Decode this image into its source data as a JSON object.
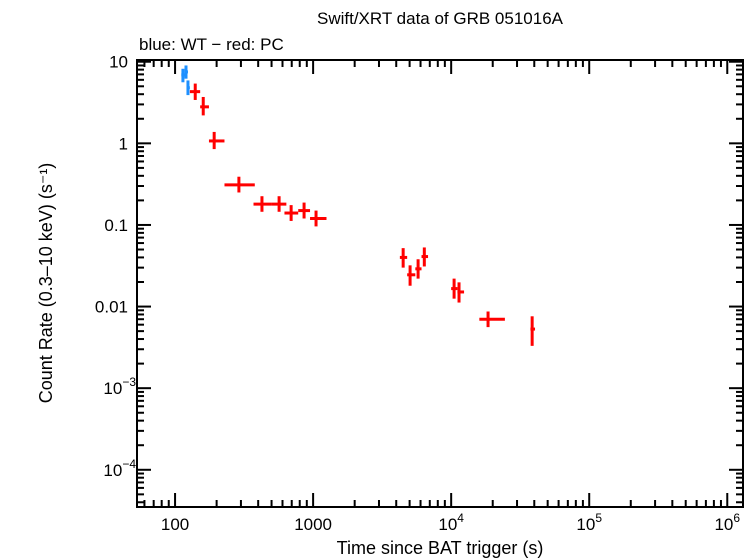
{
  "chart_data": {
    "type": "scatter",
    "title": "Swift/XRT data of GRB 051016A",
    "subtitle": "blue: WT − red: PC",
    "xlabel": "Time since BAT trigger (s)",
    "ylabel": "Count Rate (0.3–10 keV) (s⁻¹)",
    "xscale": "log",
    "yscale": "log",
    "xlim": [
      53,
      1300000
    ],
    "ylim": [
      3.5e-05,
      10.5
    ],
    "grid": false,
    "x_ticks": [
      {
        "v": 100,
        "label": "100"
      },
      {
        "v": 1000,
        "label": "1000"
      },
      {
        "v": 10000,
        "label": "10",
        "exp": "4"
      },
      {
        "v": 100000,
        "label": "10",
        "exp": "5"
      },
      {
        "v": 1000000,
        "label": "10",
        "exp": "6"
      }
    ],
    "y_ticks": [
      {
        "v": 10,
        "label": "10"
      },
      {
        "v": 1,
        "label": "1"
      },
      {
        "v": 0.1,
        "label": "0.1"
      },
      {
        "v": 0.01,
        "label": "0.01"
      },
      {
        "v": 0.001,
        "label": "10",
        "exp": "−3"
      },
      {
        "v": 0.0001,
        "label": "10",
        "exp": "−4"
      }
    ],
    "series": [
      {
        "name": "WT",
        "color": "#1e90ff",
        "points": [
          {
            "t": 114,
            "t_lo": 111,
            "t_hi": 117,
            "r": 6.9,
            "r_lo": 5.6,
            "r_hi": 8.2
          },
          {
            "t": 120,
            "t_lo": 117,
            "t_hi": 124,
            "r": 7.5,
            "r_lo": 6.2,
            "r_hi": 9.0
          },
          {
            "t": 124,
            "t_lo": 121,
            "t_hi": 128,
            "r": 4.8,
            "r_lo": 3.9,
            "r_hi": 5.9
          }
        ]
      },
      {
        "name": "PC",
        "color": "#ff0000",
        "points": [
          {
            "t": 140,
            "t_lo": 128,
            "t_hi": 152,
            "r": 4.3,
            "r_lo": 3.4,
            "r_hi": 5.4
          },
          {
            "t": 160,
            "t_lo": 152,
            "t_hi": 176,
            "r": 2.8,
            "r_lo": 2.2,
            "r_hi": 3.7
          },
          {
            "t": 192,
            "t_lo": 176,
            "t_hi": 228,
            "r": 1.07,
            "r_lo": 0.85,
            "r_hi": 1.38
          },
          {
            "t": 290,
            "t_lo": 228,
            "t_hi": 378,
            "r": 0.31,
            "r_lo": 0.25,
            "r_hi": 0.39
          },
          {
            "t": 426,
            "t_lo": 370,
            "t_hi": 500,
            "r": 0.18,
            "r_lo": 0.145,
            "r_hi": 0.225
          },
          {
            "t": 567,
            "t_lo": 500,
            "t_hi": 640,
            "r": 0.18,
            "r_lo": 0.145,
            "r_hi": 0.225
          },
          {
            "t": 693,
            "t_lo": 620,
            "t_hi": 780,
            "r": 0.14,
            "r_lo": 0.112,
            "r_hi": 0.175
          },
          {
            "t": 860,
            "t_lo": 780,
            "t_hi": 950,
            "r": 0.15,
            "r_lo": 0.12,
            "r_hi": 0.188
          },
          {
            "t": 1050,
            "t_lo": 950,
            "t_hi": 1250,
            "r": 0.12,
            "r_lo": 0.096,
            "r_hi": 0.15
          },
          {
            "t": 4490,
            "t_lo": 4250,
            "t_hi": 4800,
            "r": 0.04,
            "r_lo": 0.03,
            "r_hi": 0.052
          },
          {
            "t": 5040,
            "t_lo": 4800,
            "t_hi": 5500,
            "r": 0.0245,
            "r_lo": 0.018,
            "r_hi": 0.032
          },
          {
            "t": 5760,
            "t_lo": 5500,
            "t_hi": 6100,
            "r": 0.029,
            "r_lo": 0.022,
            "r_hi": 0.038
          },
          {
            "t": 6390,
            "t_lo": 6100,
            "t_hi": 6800,
            "r": 0.041,
            "r_lo": 0.031,
            "r_hi": 0.053
          },
          {
            "t": 10500,
            "t_lo": 10000,
            "t_hi": 11100,
            "r": 0.0166,
            "r_lo": 0.0125,
            "r_hi": 0.022
          },
          {
            "t": 11400,
            "t_lo": 11100,
            "t_hi": 12400,
            "r": 0.0151,
            "r_lo": 0.0112,
            "r_hi": 0.0198
          },
          {
            "t": 18500,
            "t_lo": 16000,
            "t_hi": 24500,
            "r": 0.007,
            "r_lo": 0.0056,
            "r_hi": 0.0087
          },
          {
            "t": 38600,
            "t_lo": 37500,
            "t_hi": 40500,
            "r": 0.0053,
            "r_lo": 0.0033,
            "r_hi": 0.0076
          }
        ]
      }
    ]
  }
}
